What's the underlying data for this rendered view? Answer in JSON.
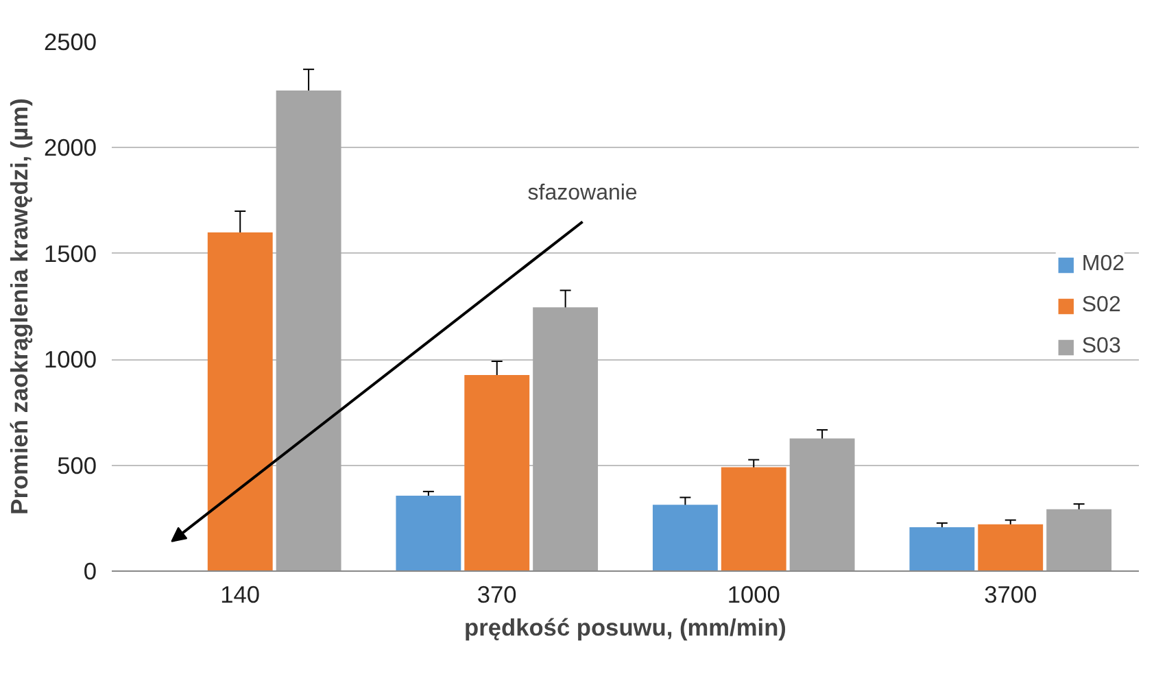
{
  "chart_data": {
    "type": "bar",
    "xlabel": "prędkość posuwu, (mm/min)",
    "ylabel": "Promień zaokrąglenia krawędzi, (µm)",
    "categories": [
      "140",
      "370",
      "1000",
      "3700"
    ],
    "series": [
      {
        "name": "M02",
        "color": "#5b9bd5",
        "values": [
          null,
          356,
          313,
          207
        ],
        "errors": [
          null,
          20,
          35,
          20
        ]
      },
      {
        "name": "S02",
        "color": "#ed7d31",
        "values": [
          1600,
          926,
          491,
          221
        ],
        "errors": [
          100,
          65,
          35,
          20
        ]
      },
      {
        "name": "S03",
        "color": "#a5a5a5",
        "values": [
          2270,
          1246,
          627,
          292
        ],
        "errors": [
          100,
          80,
          40,
          25
        ]
      }
    ],
    "ylim": [
      0,
      2500
    ],
    "yticks": [
      0,
      500,
      1000,
      1500,
      2000,
      2500
    ],
    "grid": "y",
    "legend": "right",
    "annotations": [
      "sfazowanie"
    ]
  }
}
